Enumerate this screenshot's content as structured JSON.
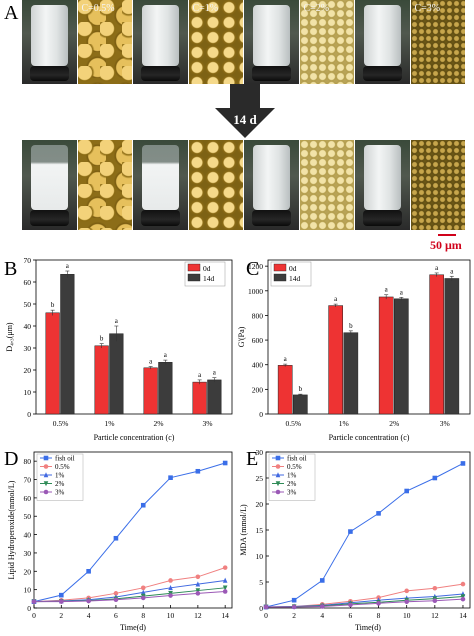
{
  "panels": {
    "a": "A",
    "b": "B",
    "c": "C",
    "d": "D",
    "e": "E"
  },
  "top_row": [
    {
      "kind": "vial"
    },
    {
      "kind": "micro",
      "style": "c05",
      "label": "C=0.5%"
    },
    {
      "kind": "vial"
    },
    {
      "kind": "micro",
      "style": "c1",
      "label": "C=1%"
    },
    {
      "kind": "vial"
    },
    {
      "kind": "micro",
      "style": "c2",
      "label": "C=2%"
    },
    {
      "kind": "vial"
    },
    {
      "kind": "micro",
      "style": "c3",
      "label": "C=3%"
    }
  ],
  "bottom_row": [
    {
      "kind": "vial",
      "clear": true
    },
    {
      "kind": "micro",
      "style": "c05"
    },
    {
      "kind": "vial",
      "clear": true
    },
    {
      "kind": "micro",
      "style": "c1"
    },
    {
      "kind": "vial",
      "clear": false
    },
    {
      "kind": "micro",
      "style": "c2"
    },
    {
      "kind": "vial",
      "clear": false
    },
    {
      "kind": "micro",
      "style": "c3"
    }
  ],
  "arrow_label": "14 d",
  "scale_label": "50 μm",
  "colors": {
    "red": "#ee3333",
    "dark": "#3c3c3c"
  },
  "chart_data": [
    {
      "type": "bar",
      "panel": "B",
      "categories": [
        "0.5%",
        "1%",
        "2%",
        "3%"
      ],
      "series": [
        {
          "name": "0d",
          "values": [
            46,
            31,
            21,
            14.5
          ],
          "err": [
            1.2,
            1,
            0.6,
            1
          ],
          "letters": [
            "b",
            "b",
            "a",
            "a"
          ]
        },
        {
          "name": "14d",
          "values": [
            63.5,
            36.5,
            23.5,
            15.5
          ],
          "err": [
            1.5,
            3.5,
            1,
            1
          ],
          "letters": [
            "a",
            "a",
            "a",
            "a"
          ]
        }
      ],
      "xlabel": "Particle concentration (c)",
      "ylabel": "D₄,₃(μm)",
      "ylim": [
        0,
        70
      ],
      "yticks": [
        0,
        10,
        20,
        30,
        40,
        50,
        60,
        70
      ],
      "legend": "top-right"
    },
    {
      "type": "bar",
      "panel": "C",
      "categories": [
        "0.5%",
        "1%",
        "2%",
        "3%"
      ],
      "series": [
        {
          "name": "0d",
          "values": [
            395,
            880,
            950,
            1130
          ],
          "err": [
            10,
            12,
            18,
            15
          ],
          "letters": [
            "a",
            "a",
            "a",
            "a"
          ]
        },
        {
          "name": "14d",
          "values": [
            155,
            660,
            935,
            1100
          ],
          "err": [
            6,
            15,
            12,
            18
          ],
          "letters": [
            "b",
            "b",
            "a",
            "a"
          ]
        }
      ],
      "xlabel": "Particle concentration (c)",
      "ylabel": "G'(Pa)",
      "ylim": [
        0,
        1250
      ],
      "yticks": [
        0,
        200,
        400,
        600,
        800,
        1000,
        1200
      ],
      "legend": "top-left"
    },
    {
      "type": "line",
      "panel": "D",
      "x": [
        0,
        2,
        4,
        6,
        8,
        10,
        12,
        14
      ],
      "series": [
        {
          "name": "fish oil",
          "values": [
            3.5,
            7,
            20,
            38,
            56,
            71,
            74.5,
            79
          ],
          "color": "#3a6ee8",
          "marker": "square"
        },
        {
          "name": "0.5%",
          "values": [
            3.5,
            4.2,
            5.5,
            8,
            11,
            15,
            17,
            22
          ],
          "color": "#f08080",
          "marker": "circle"
        },
        {
          "name": "1%",
          "values": [
            3.5,
            3.8,
            4.5,
            6,
            8.5,
            11,
            13,
            15
          ],
          "color": "#4169e1",
          "marker": "triangle"
        },
        {
          "name": "2%",
          "values": [
            3.5,
            3.6,
            4,
            5,
            6.5,
            8,
            9.5,
            11
          ],
          "color": "#2e8b57",
          "marker": "triangle-down"
        },
        {
          "name": "3%",
          "values": [
            3.5,
            3.5,
            3.8,
            4.5,
            5.5,
            6.8,
            8,
            9
          ],
          "color": "#9b59b6",
          "marker": "circle"
        }
      ],
      "xlabel": "Time(d)",
      "ylabel": "Lipid Hydroperoxide(mmol/L)",
      "xlim": [
        0,
        14.5
      ],
      "ylim": [
        0,
        85
      ],
      "xticks": [
        0,
        2,
        4,
        6,
        8,
        10,
        12,
        14
      ],
      "yticks": [
        0,
        10,
        20,
        30,
        40,
        50,
        60,
        70,
        80
      ],
      "legend": "top-left"
    },
    {
      "type": "line",
      "panel": "E",
      "x": [
        0,
        2,
        4,
        6,
        8,
        10,
        12,
        14
      ],
      "series": [
        {
          "name": "fish oil",
          "values": [
            0.2,
            1.5,
            5.3,
            14.7,
            18.2,
            22.5,
            25,
            27.8
          ],
          "color": "#3a6ee8",
          "marker": "square"
        },
        {
          "name": "0.5%",
          "values": [
            0.2,
            0.3,
            0.7,
            1.3,
            2,
            3.3,
            3.8,
            4.6
          ],
          "color": "#f08080",
          "marker": "circle"
        },
        {
          "name": "1%",
          "values": [
            0.2,
            0.3,
            0.5,
            1,
            1.5,
            1.9,
            2.2,
            2.7
          ],
          "color": "#4169e1",
          "marker": "triangle"
        },
        {
          "name": "2%",
          "values": [
            0.2,
            0.25,
            0.4,
            0.8,
            1.1,
            1.5,
            1.8,
            2.2
          ],
          "color": "#2e8b57",
          "marker": "triangle-down"
        },
        {
          "name": "3%",
          "values": [
            0.2,
            0.2,
            0.3,
            0.6,
            0.9,
            1.2,
            1.4,
            1.7
          ],
          "color": "#9b59b6",
          "marker": "circle"
        }
      ],
      "xlabel": "Time(d)",
      "ylabel": "MDA (mmol/L)",
      "xlim": [
        0,
        14.5
      ],
      "ylim": [
        0,
        30
      ],
      "xticks": [
        0,
        2,
        4,
        6,
        8,
        10,
        12,
        14
      ],
      "yticks": [
        0,
        5,
        10,
        15,
        20,
        25,
        30
      ],
      "legend": "top-left"
    }
  ]
}
